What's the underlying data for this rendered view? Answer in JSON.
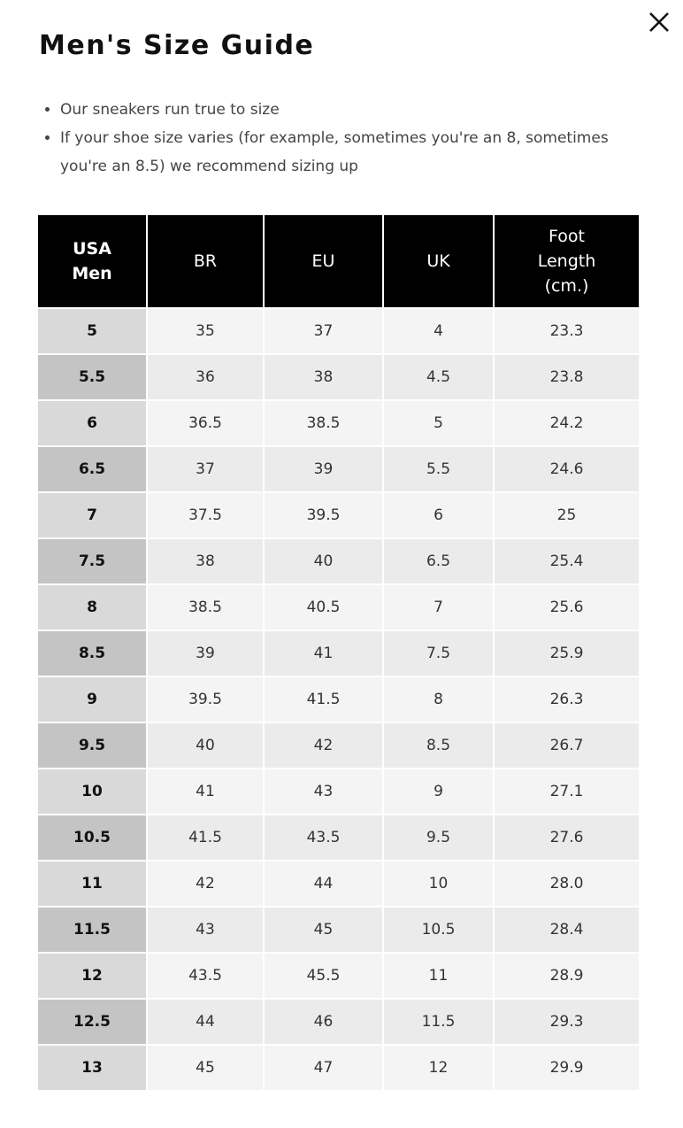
{
  "header": {
    "title": "Men's Size Guide"
  },
  "notes": [
    "Our sneakers run true to size",
    "If your shoe size varies (for example, sometimes you're an 8, sometimes you're an 8.5) we recommend sizing up"
  ],
  "table": {
    "columns": [
      "USA Men",
      "BR",
      "EU",
      "UK",
      "Foot Length (cm.)"
    ],
    "rows": [
      [
        "5",
        "35",
        "37",
        "4",
        "23.3"
      ],
      [
        "5.5",
        "36",
        "38",
        "4.5",
        "23.8"
      ],
      [
        "6",
        "36.5",
        "38.5",
        "5",
        "24.2"
      ],
      [
        "6.5",
        "37",
        "39",
        "5.5",
        "24.6"
      ],
      [
        "7",
        "37.5",
        "39.5",
        "6",
        "25"
      ],
      [
        "7.5",
        "38",
        "40",
        "6.5",
        "25.4"
      ],
      [
        "8",
        "38.5",
        "40.5",
        "7",
        "25.6"
      ],
      [
        "8.5",
        "39",
        "41",
        "7.5",
        "25.9"
      ],
      [
        "9",
        "39.5",
        "41.5",
        "8",
        "26.3"
      ],
      [
        "9.5",
        "40",
        "42",
        "8.5",
        "26.7"
      ],
      [
        "10",
        "41",
        "43",
        "9",
        "27.1"
      ],
      [
        "10.5",
        "41.5",
        "43.5",
        "9.5",
        "27.6"
      ],
      [
        "11",
        "42",
        "44",
        "10",
        "28.0"
      ],
      [
        "11.5",
        "43",
        "45",
        "10.5",
        "28.4"
      ],
      [
        "12",
        "43.5",
        "45.5",
        "11",
        "28.9"
      ],
      [
        "12.5",
        "44",
        "46",
        "11.5",
        "29.3"
      ],
      [
        "13",
        "45",
        "47",
        "12",
        "29.9"
      ]
    ]
  }
}
